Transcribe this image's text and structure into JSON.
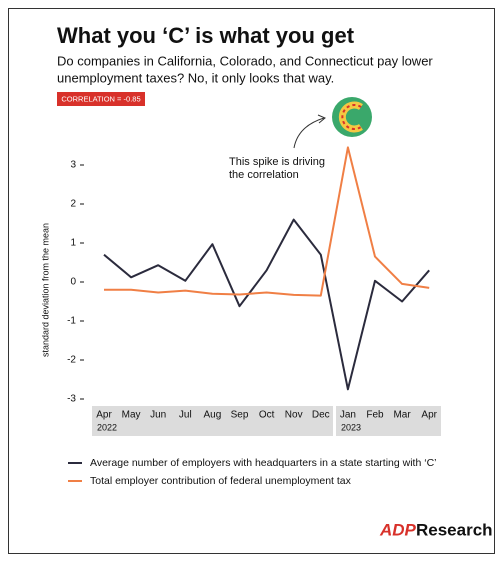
{
  "chart_data": {
    "type": "line",
    "title": "What you ‘C’ is what you get",
    "subtitle": [
      "Do companies in California, Colorado, and Connecticut pay lower",
      "unemployment taxes? No, it only looks that way."
    ],
    "badge": "CORRELATION = -0.85",
    "annotation": [
      "This spike is driving",
      "the correlation"
    ],
    "y_label": "standard deviation from the mean",
    "categories": [
      "Apr",
      "May",
      "Jun",
      "Jul",
      "Aug",
      "Sep",
      "Oct",
      "Nov",
      "Dec",
      "Jan",
      "Feb",
      "Mar",
      "Apr"
    ],
    "year_labels": [
      "2022",
      "2023"
    ],
    "series": [
      {
        "name": "Average number of employers with headquarters in a state starting with ‘C’",
        "color": "#2b2b3d",
        "values": [
          0.7,
          0.12,
          0.43,
          0.03,
          0.97,
          -0.62,
          0.3,
          1.6,
          0.7,
          -2.75,
          0.03,
          -0.5,
          0.3
        ]
      },
      {
        "name": "Total employer contribution of federal unemployment tax",
        "color": "#f07f45",
        "values": [
          -0.2,
          -0.2,
          -0.27,
          -0.22,
          -0.3,
          -0.32,
          -0.27,
          -0.33,
          -0.35,
          3.45,
          0.65,
          -0.05,
          -0.15
        ]
      }
    ],
    "ylim": [
      -3,
      3.5
    ],
    "yticks": [
      3,
      2,
      1,
      0,
      -1,
      -2,
      -3
    ],
    "logo": "ADP",
    "logo_text": "Research"
  }
}
